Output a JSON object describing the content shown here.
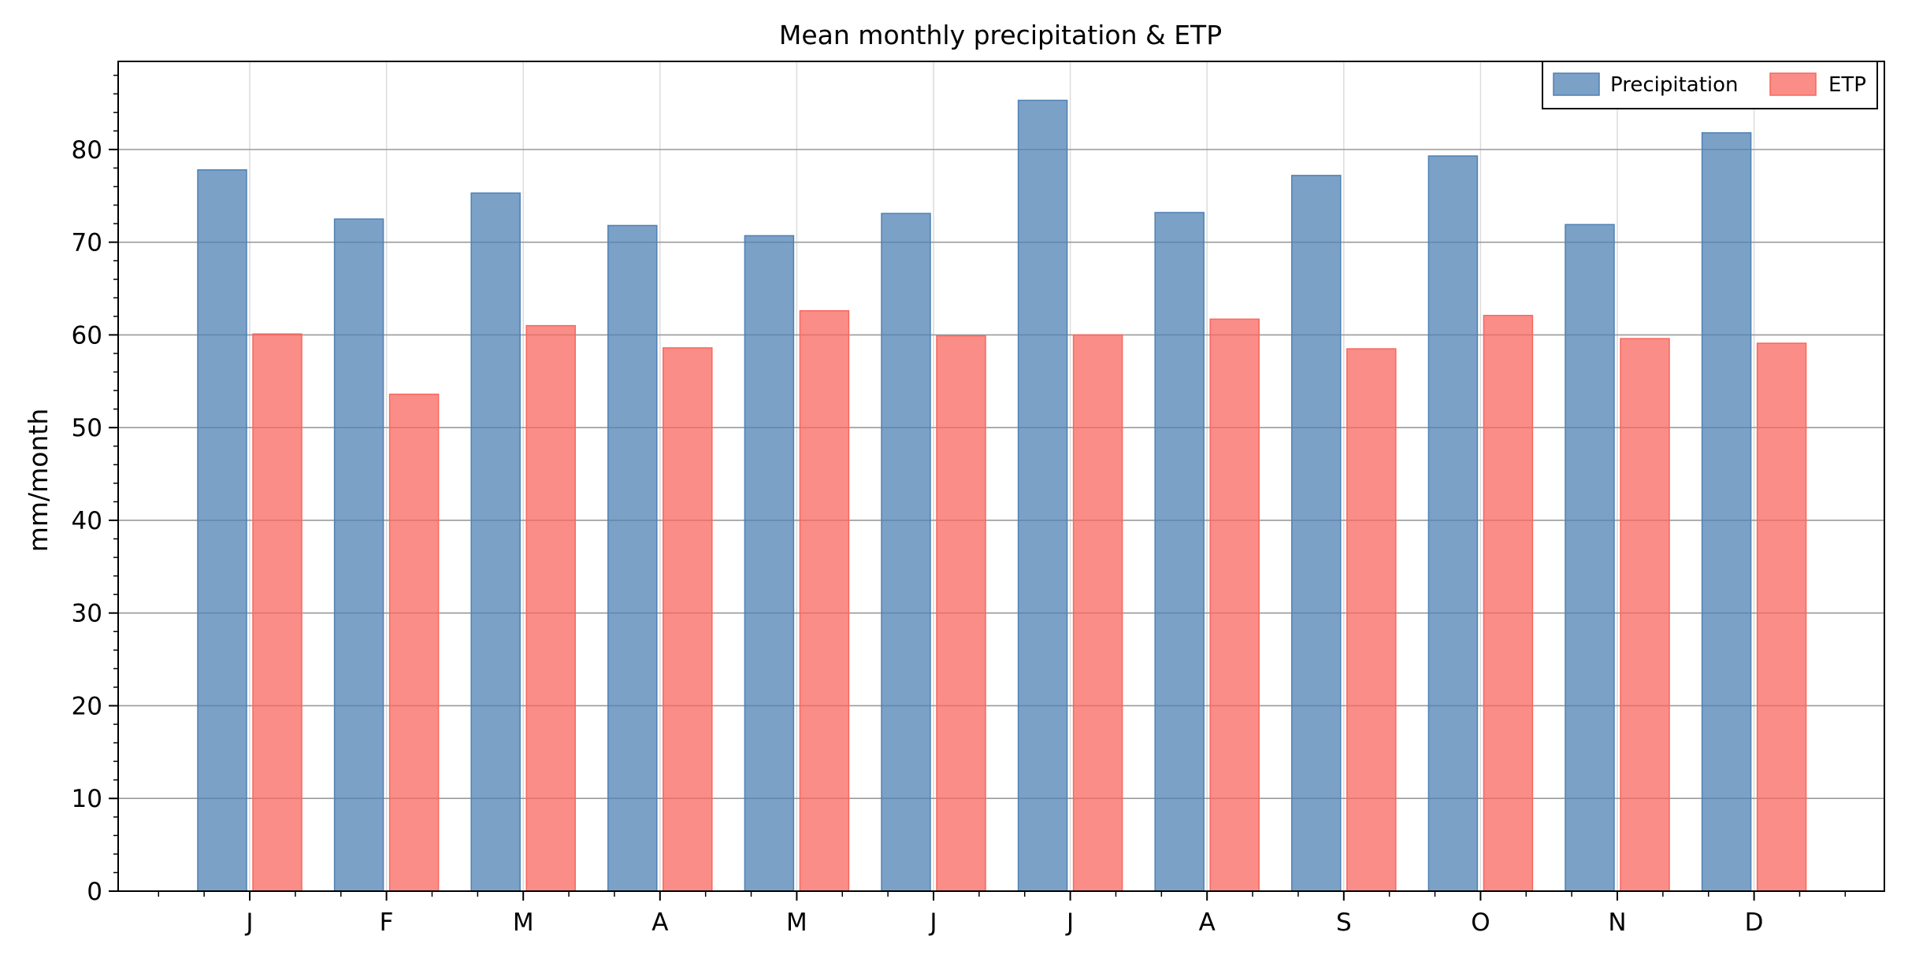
{
  "chart_data": {
    "type": "bar",
    "title": "Mean monthly precipitation & ETP",
    "xlabel": "",
    "ylabel": "mm/month",
    "categories": [
      "J",
      "F",
      "M",
      "A",
      "M",
      "J",
      "J",
      "A",
      "S",
      "O",
      "N",
      "D"
    ],
    "series": [
      {
        "name": "Precipitation",
        "color": "#4f81b4",
        "values": [
          77.8,
          72.5,
          75.3,
          71.8,
          70.7,
          73.1,
          85.3,
          73.2,
          77.2,
          79.3,
          71.9,
          81.8
        ]
      },
      {
        "name": "ETP",
        "color": "#f8675f",
        "values": [
          60.1,
          53.6,
          61.0,
          58.6,
          62.6,
          59.9,
          60.0,
          61.7,
          58.5,
          62.1,
          59.6,
          59.1
        ]
      }
    ],
    "ylim": [
      0,
      89.5
    ],
    "yticks": [
      0,
      10,
      20,
      30,
      40,
      50,
      60,
      70,
      80
    ],
    "grid": true,
    "legend_position": "top-right"
  }
}
